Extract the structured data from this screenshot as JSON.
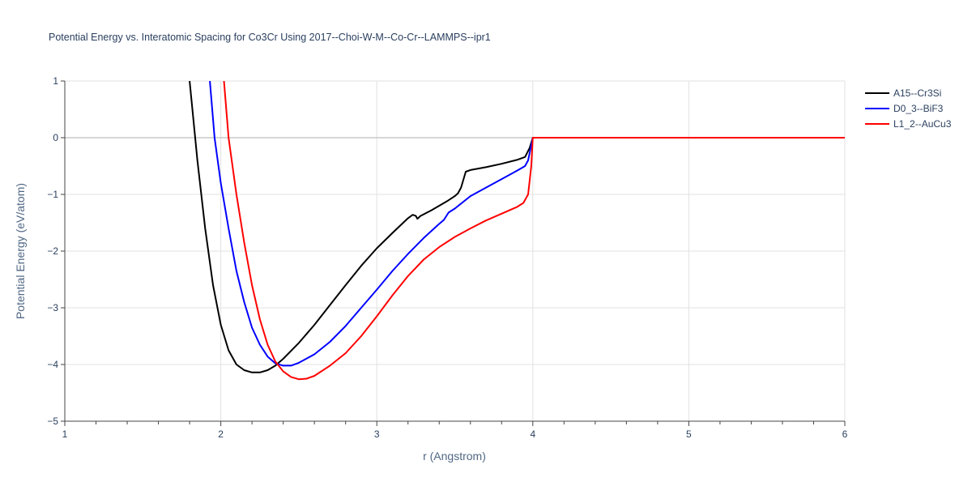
{
  "chart_data": {
    "type": "line",
    "title": "Potential Energy vs. Interatomic Spacing for Co3Cr Using 2017--Choi-W-M--Co-Cr--LAMMPS--ipr1",
    "xlabel": "r (Angstrom)",
    "ylabel": "Potential Energy (eV/atom)",
    "xlim": [
      1,
      6
    ],
    "ylim": [
      -5,
      1
    ],
    "xticks": [
      "1",
      "2",
      "3",
      "4",
      "5",
      "6"
    ],
    "yticks": [
      "1",
      "0",
      "−1",
      "−2",
      "−3",
      "−4",
      "−5"
    ],
    "grid": true,
    "legend_position": "top-right",
    "series": [
      {
        "name": "A15--Cr3Si",
        "color": "#000000",
        "points": [
          [
            1.8,
            1.0
          ],
          [
            1.85,
            -0.4
          ],
          [
            1.9,
            -1.6
          ],
          [
            1.95,
            -2.6
          ],
          [
            2.0,
            -3.3
          ],
          [
            2.05,
            -3.75
          ],
          [
            2.1,
            -4.0
          ],
          [
            2.15,
            -4.1
          ],
          [
            2.2,
            -4.14
          ],
          [
            2.25,
            -4.14
          ],
          [
            2.3,
            -4.1
          ],
          [
            2.35,
            -4.02
          ],
          [
            2.4,
            -3.9
          ],
          [
            2.5,
            -3.62
          ],
          [
            2.6,
            -3.3
          ],
          [
            2.7,
            -2.95
          ],
          [
            2.8,
            -2.6
          ],
          [
            2.9,
            -2.26
          ],
          [
            3.0,
            -1.95
          ],
          [
            3.1,
            -1.68
          ],
          [
            3.2,
            -1.42
          ],
          [
            3.23,
            -1.36
          ],
          [
            3.25,
            -1.38
          ],
          [
            3.26,
            -1.43
          ],
          [
            3.28,
            -1.38
          ],
          [
            3.35,
            -1.28
          ],
          [
            3.45,
            -1.12
          ],
          [
            3.5,
            -1.03
          ],
          [
            3.52,
            -0.98
          ],
          [
            3.54,
            -0.88
          ],
          [
            3.57,
            -0.6
          ],
          [
            3.6,
            -0.57
          ],
          [
            3.7,
            -0.52
          ],
          [
            3.8,
            -0.46
          ],
          [
            3.9,
            -0.39
          ],
          [
            3.95,
            -0.34
          ],
          [
            3.98,
            -0.18
          ],
          [
            4.0,
            0.0
          ],
          [
            6.0,
            0.0
          ]
        ]
      },
      {
        "name": "D0_3--BiF3",
        "color": "#0000ff",
        "points": [
          [
            1.93,
            1.0
          ],
          [
            1.96,
            0.0
          ],
          [
            2.0,
            -0.8
          ],
          [
            2.05,
            -1.6
          ],
          [
            2.1,
            -2.35
          ],
          [
            2.15,
            -2.9
          ],
          [
            2.2,
            -3.35
          ],
          [
            2.25,
            -3.65
          ],
          [
            2.3,
            -3.86
          ],
          [
            2.35,
            -3.98
          ],
          [
            2.4,
            -4.02
          ],
          [
            2.45,
            -4.02
          ],
          [
            2.5,
            -3.97
          ],
          [
            2.6,
            -3.82
          ],
          [
            2.7,
            -3.6
          ],
          [
            2.8,
            -3.32
          ],
          [
            2.9,
            -3.0
          ],
          [
            3.0,
            -2.68
          ],
          [
            3.1,
            -2.35
          ],
          [
            3.2,
            -2.05
          ],
          [
            3.3,
            -1.77
          ],
          [
            3.4,
            -1.52
          ],
          [
            3.43,
            -1.45
          ],
          [
            3.46,
            -1.32
          ],
          [
            3.5,
            -1.25
          ],
          [
            3.6,
            -1.03
          ],
          [
            3.7,
            -0.88
          ],
          [
            3.8,
            -0.73
          ],
          [
            3.9,
            -0.58
          ],
          [
            3.95,
            -0.5
          ],
          [
            3.97,
            -0.4
          ],
          [
            4.0,
            0.0
          ],
          [
            6.0,
            0.0
          ]
        ]
      },
      {
        "name": "L1_2--AuCu3",
        "color": "#ff0000",
        "points": [
          [
            2.02,
            1.0
          ],
          [
            2.05,
            0.0
          ],
          [
            2.1,
            -1.0
          ],
          [
            2.15,
            -1.85
          ],
          [
            2.2,
            -2.6
          ],
          [
            2.25,
            -3.2
          ],
          [
            2.3,
            -3.65
          ],
          [
            2.35,
            -3.95
          ],
          [
            2.4,
            -4.12
          ],
          [
            2.45,
            -4.22
          ],
          [
            2.5,
            -4.26
          ],
          [
            2.55,
            -4.25
          ],
          [
            2.6,
            -4.2
          ],
          [
            2.7,
            -4.02
          ],
          [
            2.8,
            -3.8
          ],
          [
            2.9,
            -3.5
          ],
          [
            3.0,
            -3.15
          ],
          [
            3.1,
            -2.78
          ],
          [
            3.2,
            -2.44
          ],
          [
            3.3,
            -2.15
          ],
          [
            3.4,
            -1.93
          ],
          [
            3.5,
            -1.75
          ],
          [
            3.6,
            -1.6
          ],
          [
            3.7,
            -1.46
          ],
          [
            3.8,
            -1.34
          ],
          [
            3.9,
            -1.22
          ],
          [
            3.94,
            -1.15
          ],
          [
            3.97,
            -1.0
          ],
          [
            3.99,
            -0.5
          ],
          [
            4.0,
            0.0
          ],
          [
            6.0,
            0.0
          ]
        ]
      }
    ]
  }
}
